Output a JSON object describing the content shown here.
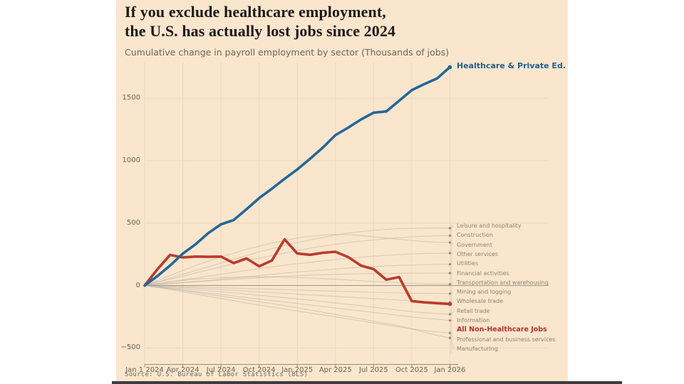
{
  "title_line1": "If you exclude healthcare employment,",
  "title_line2": "the U.S. has actually lost jobs since 2024",
  "subtitle": "Cumulative change in payroll employment by sector (Thousands of jobs)",
  "source": "Source: U.S. Bureau of Labor Statistics (BLS)",
  "colors": {
    "figure_background": "#fae6cd",
    "healthcare_line": "#22679a",
    "non_healthcare_line": "#bc3a2d",
    "sector_line": "#b7b0a2",
    "grid": "#e9d5b9",
    "zero_line": "#8f8c84",
    "axis_line": "#8a8274",
    "title_text": "#1d1a17",
    "subtitle_text": "#6e6557",
    "tick_text": "#6a6354",
    "sector_label_text": "#8d8474",
    "healthcare_label_text": "#1f618f",
    "highlight_label_text": "#b5342a"
  },
  "chart_data": {
    "type": "line",
    "title": "If you exclude healthcare employment, the U.S. has actually lost jobs since 2024",
    "subtitle": "Cumulative change in payroll employment by sector (Thousands of jobs)",
    "x_months": [
      "Jan 2024",
      "Feb 2024",
      "Mar 2024",
      "Apr 2024",
      "May 2024",
      "Jun 2024",
      "Jul 2024",
      "Aug 2024",
      "Sep 2024",
      "Oct 2024",
      "Nov 2024",
      "Dec 2024",
      "Jan 2025",
      "Feb 2025",
      "Mar 2025",
      "Apr 2025",
      "May 2025",
      "Jun 2025",
      "Jul 2025",
      "Aug 2025",
      "Sep 2025",
      "Oct 2025",
      "Nov 2025",
      "Dec 2025",
      "Jan 2026"
    ],
    "xtick_labels": [
      "Jan 1 2024",
      "Apr 2024",
      "Jul 2024",
      "Oct 2024",
      "Jan 2025",
      "Apr 2025",
      "Jul 2025",
      "Oct 2025",
      "Jan 2026"
    ],
    "yticks": [
      -500,
      0,
      500,
      1000,
      1500
    ],
    "ylim": [
      -560,
      1800
    ],
    "grid": "on",
    "unit": "Thousands of jobs",
    "healthcare": {
      "label": "Healthcare & Private Ed.",
      "values": [
        0,
        75,
        160,
        255,
        330,
        420,
        490,
        525,
        610,
        700,
        775,
        855,
        930,
        1015,
        1105,
        1205,
        1265,
        1330,
        1385,
        1395,
        1480,
        1565,
        1615,
        1660,
        1750
      ]
    },
    "non_healthcare": {
      "label": "All Non-Healthcare Jobs",
      "values": [
        0,
        130,
        245,
        225,
        232,
        230,
        232,
        180,
        217,
        154,
        200,
        370,
        257,
        246,
        262,
        270,
        228,
        160,
        131,
        46,
        68,
        -125,
        -135,
        -142,
        -148
      ]
    },
    "sectors": [
      {
        "name": "Leisure and hospitality",
        "values": [
          0,
          30,
          60,
          90,
          120,
          150,
          180,
          210,
          240,
          270,
          295,
          320,
          345,
          365,
          385,
          405,
          420,
          432,
          442,
          450,
          455,
          458,
          460,
          461,
          460
        ]
      },
      {
        "name": "Construction",
        "values": [
          0,
          25,
          50,
          75,
          100,
          125,
          150,
          175,
          200,
          220,
          240,
          260,
          280,
          300,
          315,
          330,
          345,
          355,
          365,
          375,
          383,
          390,
          395,
          398,
          400
        ]
      },
      {
        "name": "Government",
        "values": [
          0,
          40,
          80,
          120,
          160,
          195,
          230,
          260,
          290,
          315,
          340,
          360,
          380,
          395,
          405,
          410,
          408,
          400,
          390,
          380,
          370,
          360,
          352,
          347,
          345
        ]
      },
      {
        "name": "Other services",
        "values": [
          0,
          15,
          30,
          45,
          60,
          75,
          90,
          105,
          120,
          135,
          150,
          162,
          174,
          186,
          197,
          208,
          218,
          227,
          235,
          242,
          248,
          253,
          256,
          258,
          260
        ]
      },
      {
        "name": "Utilities",
        "values": [
          0,
          8,
          16,
          24,
          32,
          40,
          50,
          60,
          70,
          80,
          90,
          100,
          108,
          116,
          124,
          132,
          140,
          146,
          152,
          157,
          161,
          164,
          167,
          169,
          170
        ]
      },
      {
        "name": "Financial activities",
        "values": [
          0,
          8,
          15,
          22,
          30,
          37,
          44,
          50,
          56,
          62,
          68,
          73,
          78,
          82,
          86,
          89,
          92,
          94,
          96,
          97,
          98,
          99,
          99,
          100,
          100
        ]
      },
      {
        "name": "Transportation and warehousing",
        "values": [
          0,
          15,
          28,
          40,
          50,
          57,
          62,
          66,
          68,
          70,
          69,
          67,
          64,
          60,
          55,
          50,
          44,
          38,
          32,
          27,
          22,
          17,
          13,
          11,
          10
        ]
      },
      {
        "name": "Mining and logging",
        "values": [
          0,
          -3,
          -6,
          -9,
          -12,
          -15,
          -18,
          -21,
          -24,
          -27,
          -30,
          -33,
          -36,
          -39,
          -42,
          -45,
          -48,
          -51,
          -54,
          -57,
          -60,
          -62,
          -63,
          -64,
          -65
        ]
      },
      {
        "name": "Wholesale trade",
        "values": [
          0,
          -5,
          -10,
          -15,
          -21,
          -27,
          -33,
          -39,
          -45,
          -51,
          -57,
          -63,
          -69,
          -75,
          -81,
          -87,
          -93,
          -99,
          -105,
          -111,
          -117,
          -123,
          -128,
          -132,
          -135
        ]
      },
      {
        "name": "Retail trade",
        "values": [
          0,
          -10,
          -18,
          -25,
          -33,
          -42,
          -51,
          -60,
          -69,
          -78,
          -88,
          -98,
          -108,
          -118,
          -129,
          -140,
          -151,
          -162,
          -174,
          -186,
          -198,
          -209,
          -218,
          -225,
          -230
        ]
      },
      {
        "name": "Information",
        "values": [
          0,
          -12,
          -24,
          -36,
          -48,
          -60,
          -72,
          -84,
          -96,
          -108,
          -120,
          -132,
          -144,
          -156,
          -168,
          -180,
          -192,
          -204,
          -216,
          -228,
          -240,
          -252,
          -262,
          -272,
          -280
        ]
      },
      {
        "name": "Professional and business services",
        "values": [
          0,
          -15,
          -32,
          -50,
          -68,
          -86,
          -104,
          -122,
          -140,
          -156,
          -172,
          -188,
          -204,
          -220,
          -236,
          -252,
          -268,
          -284,
          -300,
          -316,
          -332,
          -348,
          -361,
          -372,
          -380
        ]
      },
      {
        "name": "Manufacturing",
        "values": [
          0,
          -12,
          -25,
          -40,
          -55,
          -70,
          -85,
          -100,
          -115,
          -130,
          -145,
          -160,
          -178,
          -196,
          -214,
          -232,
          -250,
          -268,
          -286,
          -304,
          -322,
          -348,
          -375,
          -400,
          -420
        ]
      }
    ],
    "right_label_order": [
      "Leisure and hospitality",
      "Construction",
      "Government",
      "Other services",
      "Utilities",
      "Financial activities",
      "Transportation and warehousing",
      "Mining and logging",
      "Wholesale trade",
      "Retail trade",
      "Information",
      "All Non-Healthcare Jobs",
      "Professional and business services",
      "Manufacturing"
    ],
    "legend_position": "right-annotations"
  }
}
